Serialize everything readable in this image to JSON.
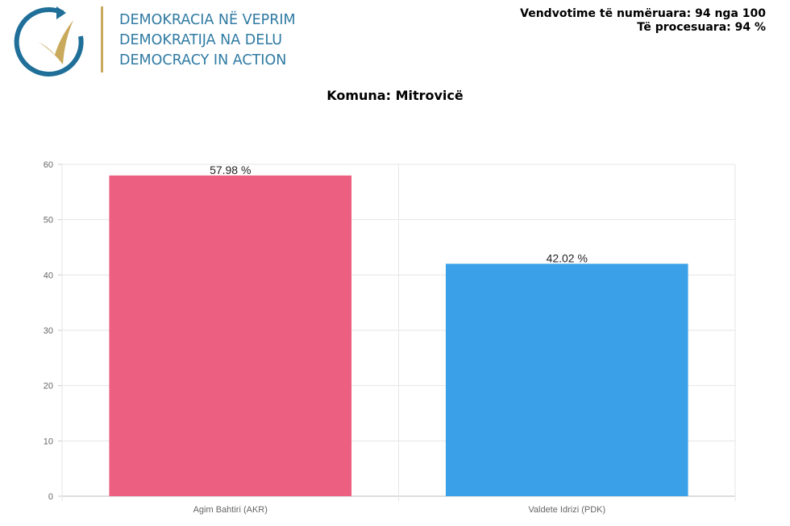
{
  "logo": {
    "lines": [
      "DEMOKRACIA NË VEPRIM",
      "DEMOKRATIJA NA DELU",
      "DEMOCRACY IN ACTION"
    ],
    "colors": {
      "text": "#2f7aa3",
      "check": "#c9a95b",
      "arc": "#1f6f99"
    }
  },
  "status": {
    "counted": "Vendvotime të numëruara: 94 nga 100",
    "processed": "Të procesuara: 94 %"
  },
  "chart_data": {
    "type": "bar",
    "title": "Komuna: Mitrovicë",
    "categories": [
      "Agim Bahtiri (AKR)",
      "Valdete Idrizi (PDK)"
    ],
    "values": [
      57.98,
      42.02
    ],
    "data_labels": [
      "57.98 %",
      "42.02 %"
    ],
    "colors": [
      "#ec5f80",
      "#3aa0e8"
    ],
    "ylim": [
      0,
      60
    ],
    "yticks": [
      "0",
      "10",
      "20",
      "30",
      "40",
      "50",
      "60"
    ],
    "grid": true,
    "xlabel": "",
    "ylabel": ""
  }
}
